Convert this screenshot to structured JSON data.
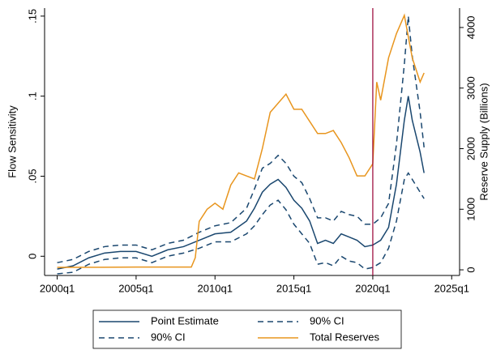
{
  "chart_data": {
    "type": "line",
    "ylabel": "Flow Sensitivity",
    "y2label": "Reserve Supply (Billions)",
    "xlim": [
      1999.2,
      2025.5
    ],
    "xticks": [
      {
        "value": 2000,
        "label": "2000q1"
      },
      {
        "value": 2005,
        "label": "2005q1"
      },
      {
        "value": 2010,
        "label": "2010q1"
      },
      {
        "value": 2015,
        "label": "2015q1"
      },
      {
        "value": 2020,
        "label": "2020q1"
      },
      {
        "value": 2025,
        "label": "2025q1"
      }
    ],
    "ylim": [
      -0.012,
      0.155
    ],
    "yticks": [
      0,
      {
        "value": 0.05,
        "label": ".05"
      },
      {
        "value": 0.1,
        "label": ".1"
      },
      {
        "value": 0.15,
        "label": ".15"
      }
    ],
    "y2lim": [
      -93,
      4320
    ],
    "y2ticks": [
      0,
      1000,
      2000,
      3000,
      4000
    ],
    "vline": 2020,
    "vline_color": "#990033",
    "series": [
      {
        "name": "Point Estimate",
        "color": "#1a476f",
        "style": "solid",
        "x": [
          2000,
          2001,
          2002,
          2003,
          2004,
          2005,
          2006,
          2007,
          2008,
          2009,
          2010,
          2011,
          2012,
          2012.5,
          2013,
          2013.5,
          2014,
          2014.5,
          2015,
          2015.5,
          2016,
          2016.5,
          2017,
          2017.5,
          2018,
          2018.5,
          2019,
          2019.5,
          2020,
          2020.5,
          2021,
          2021.5,
          2022,
          2022.25,
          2022.5,
          2023,
          2023.25
        ],
        "values": [
          -0.008,
          -0.006,
          -0.001,
          0.002,
          0.003,
          0.003,
          0.0,
          0.004,
          0.006,
          0.01,
          0.014,
          0.015,
          0.022,
          0.03,
          0.04,
          0.045,
          0.048,
          0.043,
          0.035,
          0.03,
          0.022,
          0.008,
          0.01,
          0.008,
          0.014,
          0.012,
          0.01,
          0.006,
          0.007,
          0.01,
          0.018,
          0.045,
          0.085,
          0.1,
          0.085,
          0.065,
          0.052
        ]
      },
      {
        "name": "90% CI",
        "color": "#1a476f",
        "style": "dashed",
        "x": [
          2000,
          2001,
          2002,
          2003,
          2004,
          2005,
          2006,
          2007,
          2008,
          2009,
          2010,
          2011,
          2012,
          2012.5,
          2013,
          2013.5,
          2014,
          2014.5,
          2015,
          2015.5,
          2016,
          2016.5,
          2017,
          2017.5,
          2018,
          2018.5,
          2019,
          2019.5,
          2020,
          2020.5,
          2021,
          2021.5,
          2022,
          2022.25,
          2022.5,
          2023,
          2023.25
        ],
        "values": [
          -0.004,
          -0.002,
          0.003,
          0.006,
          0.007,
          0.007,
          0.004,
          0.008,
          0.01,
          0.015,
          0.019,
          0.021,
          0.03,
          0.042,
          0.055,
          0.058,
          0.063,
          0.058,
          0.05,
          0.046,
          0.036,
          0.024,
          0.024,
          0.022,
          0.028,
          0.026,
          0.025,
          0.02,
          0.02,
          0.024,
          0.033,
          0.07,
          0.12,
          0.15,
          0.125,
          0.09,
          0.068
        ]
      },
      {
        "name": "90% CI",
        "color": "#1a476f",
        "style": "dashed",
        "x": [
          2000,
          2001,
          2002,
          2003,
          2004,
          2005,
          2006,
          2007,
          2008,
          2009,
          2010,
          2011,
          2012,
          2012.5,
          2013,
          2013.5,
          2014,
          2014.5,
          2015,
          2015.5,
          2016,
          2016.5,
          2017,
          2017.5,
          2018,
          2018.5,
          2019,
          2019.5,
          2020,
          2020.5,
          2021,
          2021.5,
          2022,
          2022.25,
          2022.5,
          2023,
          2023.25
        ],
        "values": [
          -0.011,
          -0.01,
          -0.005,
          -0.002,
          -0.001,
          -0.001,
          -0.004,
          0.0,
          0.002,
          0.005,
          0.009,
          0.009,
          0.014,
          0.019,
          0.026,
          0.032,
          0.035,
          0.029,
          0.02,
          0.014,
          0.008,
          -0.005,
          -0.004,
          -0.006,
          0.0,
          -0.003,
          -0.004,
          -0.008,
          -0.007,
          -0.004,
          0.005,
          0.022,
          0.048,
          0.052,
          0.048,
          0.04,
          0.036
        ]
      },
      {
        "name": "Total Reserves",
        "color": "#e8951e",
        "style": "solid",
        "axis": "y2",
        "x": [
          2000,
          2005,
          2008.5,
          2008.75,
          2009,
          2009.5,
          2010,
          2010.5,
          2011,
          2011.5,
          2012,
          2012.5,
          2013,
          2013.5,
          2014,
          2014.5,
          2015,
          2015.5,
          2016,
          2016.5,
          2017,
          2017.5,
          2018,
          2018.5,
          2019,
          2019.5,
          2020,
          2020.25,
          2020.5,
          2021,
          2021.5,
          2022,
          2022.5,
          2023,
          2023.25
        ],
        "values": [
          40,
          45,
          45,
          200,
          800,
          1000,
          1100,
          1000,
          1400,
          1600,
          1550,
          1500,
          2000,
          2600,
          2750,
          2900,
          2650,
          2650,
          2450,
          2250,
          2250,
          2300,
          2100,
          1850,
          1550,
          1550,
          1750,
          3100,
          2800,
          3500,
          3900,
          4200,
          3500,
          3100,
          3250
        ]
      }
    ]
  }
}
